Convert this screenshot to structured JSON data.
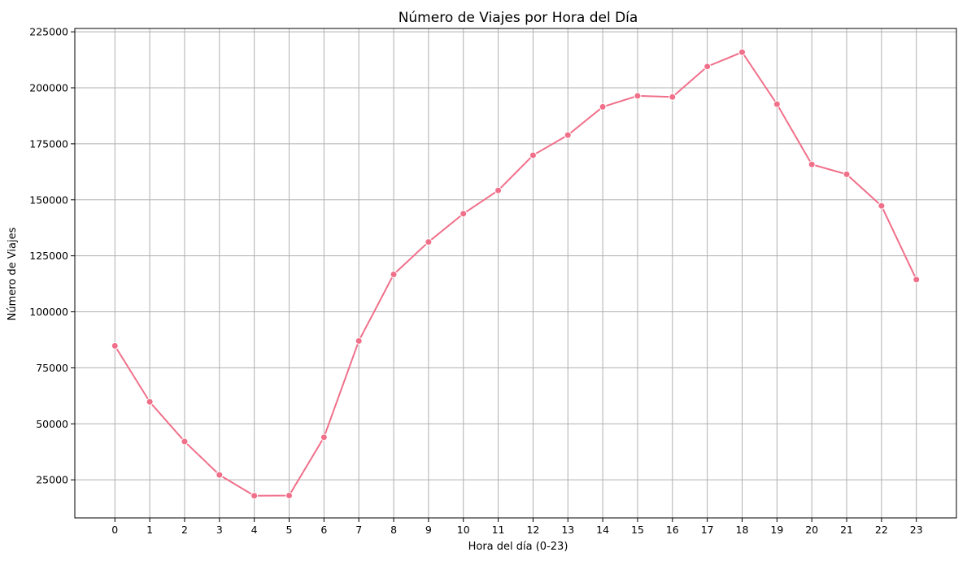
{
  "chart_data": {
    "type": "line",
    "title": "Número de Viajes por Hora del Día",
    "xlabel": "Hora del día (0-23)",
    "ylabel": "Número de Viajes",
    "x": [
      0,
      1,
      2,
      3,
      4,
      5,
      6,
      7,
      8,
      9,
      10,
      11,
      12,
      13,
      14,
      15,
      16,
      17,
      18,
      19,
      20,
      21,
      22,
      23
    ],
    "x_tick_labels": [
      "0",
      "1",
      "2",
      "3",
      "4",
      "5",
      "6",
      "7",
      "8",
      "9",
      "10",
      "11",
      "12",
      "13",
      "14",
      "15",
      "16",
      "17",
      "18",
      "19",
      "20",
      "21",
      "22",
      "23"
    ],
    "y_ticks": [
      25000,
      50000,
      75000,
      100000,
      125000,
      150000,
      175000,
      200000,
      225000
    ],
    "y_tick_labels": [
      "25000",
      "50000",
      "75000",
      "100000",
      "125000",
      "150000",
      "175000",
      "200000",
      "225000"
    ],
    "series": [
      {
        "color": "#f0708a",
        "values": [
          84800,
          59800,
          42100,
          27200,
          17900,
          18000,
          44000,
          87000,
          116700,
          131200,
          143800,
          154200,
          169900,
          178900,
          191500,
          196400,
          195900,
          209500,
          215900,
          192700,
          165800,
          161400,
          147300,
          114400
        ]
      }
    ],
    "xlim": [
      -1.15,
      24.15
    ],
    "ylim": [
      8000,
      226500
    ],
    "grid": true,
    "legend": "none"
  }
}
